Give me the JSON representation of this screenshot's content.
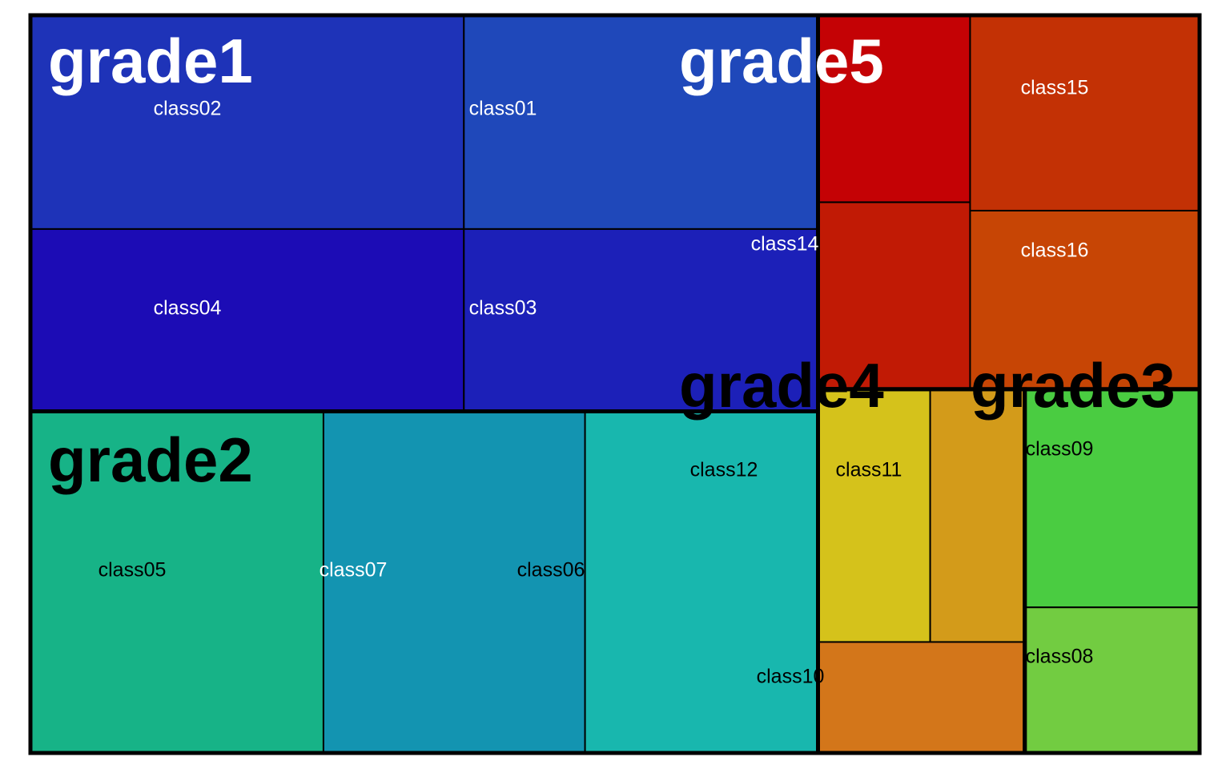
{
  "chart_data": {
    "type": "treemap",
    "title": "",
    "groups": [
      {
        "name": "grade1",
        "label_color": "#ffffff",
        "children": [
          {
            "name": "class02",
            "value": 11.47,
            "color": "#1e33b8",
            "label_color": "#ffffff"
          },
          {
            "name": "class01",
            "value": 9.37,
            "color": "#1f48ba",
            "label_color": "#ffffff"
          },
          {
            "name": "class04",
            "value": 9.78,
            "color": "#1c0cb5",
            "label_color": "#ffffff"
          },
          {
            "name": "class03",
            "value": 7.99,
            "color": "#1c20b8",
            "label_color": "#ffffff"
          }
        ]
      },
      {
        "name": "grade2",
        "label_color": "#000000",
        "children": [
          {
            "name": "class05",
            "value": 12.39,
            "color": "#17b387",
            "label_color": "#000000"
          },
          {
            "name": "class07",
            "value": 11.06,
            "color": "#1394b1",
            "label_color": "#ffffff"
          },
          {
            "name": "class06",
            "value": 9.85,
            "color": "#18b7ae",
            "label_color": "#000000"
          }
        ]
      },
      {
        "name": "grade5",
        "label_color": "#ffffff",
        "children": [
          {
            "name": "class14",
            "value": 7.04,
            "color": "#c11a05",
            "label_color": "#ffffff"
          },
          {
            "name": "class15",
            "value": 5.55,
            "color": "#c33105",
            "label_color": "#ffffff"
          },
          {
            "name": "class16",
            "value": 5.07,
            "color": "#c74505",
            "label_color": "#ffffff"
          }
        ]
      },
      {
        "name": "grade4",
        "label_color": "#000000",
        "children": [
          {
            "name": "class12",
            "value": 3.51,
            "color": "#d5c21b",
            "label_color": "#000000"
          },
          {
            "name": "class11",
            "value": 2.96,
            "color": "#d39b1a",
            "label_color": "#000000"
          },
          {
            "name": "class10",
            "value": 2.84,
            "color": "#d3761a",
            "label_color": "#000000"
          }
        ]
      },
      {
        "name": "grade3",
        "label_color": "#000000",
        "children": [
          {
            "name": "class09",
            "value": 4.72,
            "color": "#4acc41",
            "label_color": "#000000"
          },
          {
            "name": "class08",
            "value": 3.15,
            "color": "#72cc41",
            "label_color": "#000000"
          }
        ]
      }
    ],
    "border_color": "#000000"
  }
}
